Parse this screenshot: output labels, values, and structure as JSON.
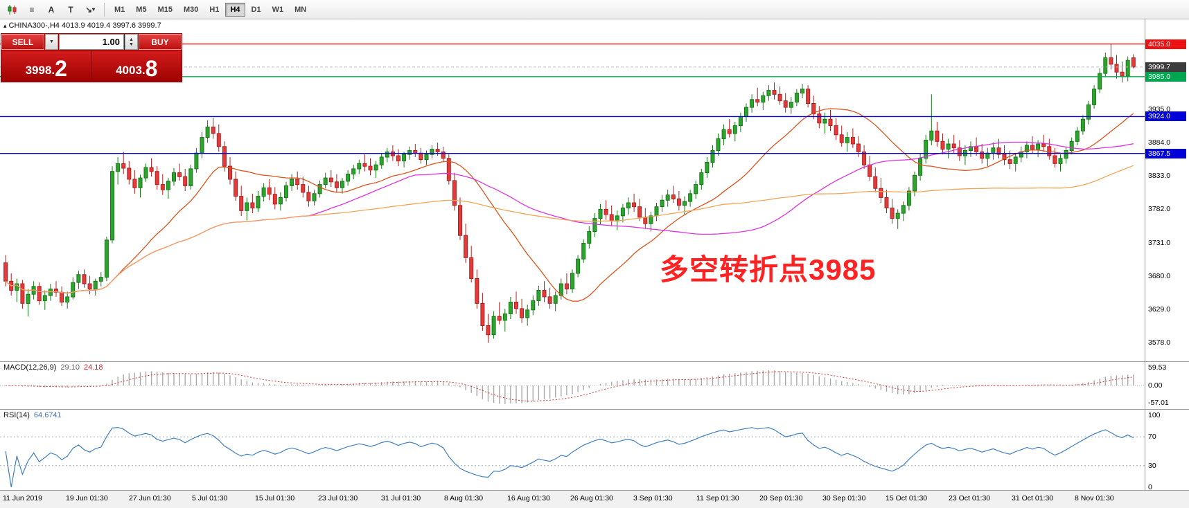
{
  "toolbar": {
    "tools": [
      {
        "name": "chart-type",
        "glyph": "candles"
      },
      {
        "name": "indicators",
        "glyph": "≡"
      },
      {
        "name": "text-tool",
        "glyph": "A"
      },
      {
        "name": "label-tool",
        "glyph": "T"
      },
      {
        "name": "draw-tool",
        "glyph": "↘",
        "caret": true
      }
    ],
    "timeframes": [
      {
        "label": "M1"
      },
      {
        "label": "M5"
      },
      {
        "label": "M15"
      },
      {
        "label": "M30"
      },
      {
        "label": "H1"
      },
      {
        "label": "H4",
        "active": true
      },
      {
        "label": "D1"
      },
      {
        "label": "W1"
      },
      {
        "label": "MN"
      }
    ]
  },
  "header": {
    "text": "CHINA300-,H4  4013.9 4019.4 3997.6 3999.7"
  },
  "trade_panel": {
    "sell_label": "SELL",
    "buy_label": "BUY",
    "volume": "1.00",
    "bid_prefix": "3998.",
    "bid_big": "2",
    "ask_prefix": "4003.",
    "ask_big": "8"
  },
  "annotation": {
    "text": "多空转折点3985",
    "color": "#ff2222"
  },
  "price_axis": {
    "labels": [
      "3935.0",
      "3884.0",
      "3833.0",
      "3782.0",
      "3731.0",
      "3680.0",
      "3629.0",
      "3578.0"
    ],
    "badges": [
      {
        "label": "4035.0",
        "price": 4035.0,
        "color": "#ee1111"
      },
      {
        "label": "3999.7",
        "price": 3999.7,
        "color": "#3c3c3c"
      },
      {
        "label": "3985.0",
        "price": 3985.0,
        "color": "#00a550"
      },
      {
        "label": "3924.0",
        "price": 3924.0,
        "color": "#0000d8"
      },
      {
        "label": "3867.5",
        "price": 3867.5,
        "color": "#0000d8"
      }
    ]
  },
  "levels": [
    {
      "price": 4035.0,
      "color": "#ee1111"
    },
    {
      "price": 3985.0,
      "color": "#00b050"
    },
    {
      "price": 3924.0,
      "color": "#0000d8"
    },
    {
      "price": 3867.5,
      "color": "#0000d8"
    }
  ],
  "current_price": 3999.7,
  "macd": {
    "title": "MACD(12,26,9)",
    "value_main": "29.10",
    "value_signal": "24.18",
    "axis": [
      {
        "label": "59.53",
        "value": 59.53
      },
      {
        "label": "0.00",
        "value": 0
      },
      {
        "label": "-57.01",
        "value": -57.01
      }
    ]
  },
  "rsi": {
    "title": "RSI(14)",
    "value": "64.6741",
    "axis": [
      {
        "label": "100",
        "value": 100
      },
      {
        "label": "70",
        "value": 70
      },
      {
        "label": "30",
        "value": 30
      },
      {
        "label": "0",
        "value": 0
      }
    ],
    "levels": [
      70,
      30
    ]
  },
  "time_axis": [
    "11 Jun 2019",
    "19 Jun 01:30",
    "27 Jun 01:30",
    "5 Jul 01:30",
    "15 Jul 01:30",
    "23 Jul 01:30",
    "31 Jul 01:30",
    "8 Aug 01:30",
    "16 Aug 01:30",
    "26 Aug 01:30",
    "3 Sep 01:30",
    "11 Sep 01:30",
    "20 Sep 01:30",
    "30 Sep 01:30",
    "15 Oct 01:30",
    "23 Oct 01:30",
    "31 Oct 01:30",
    "8 Nov 01:30"
  ],
  "chart_data": {
    "type": "candlestick",
    "symbol": "CHINA300-",
    "timeframe": "H4",
    "current_ohlc": {
      "open": 4013.9,
      "high": 4019.4,
      "low": 3997.6,
      "close": 3999.7
    },
    "price_range": [
      3560,
      4060
    ],
    "up_color": "#2fa32f",
    "up_stroke": "#157a15",
    "down_color": "#e23b3b",
    "down_stroke": "#b02020",
    "overlays": [
      {
        "name": "ma-fast",
        "period": 20,
        "color": "#d9541c"
      },
      {
        "name": "ma-medium",
        "period": 55,
        "color": "#dd33dd"
      },
      {
        "name": "ma-slow",
        "period": 110,
        "color": "#f0a558"
      }
    ],
    "candles": [
      [
        3700,
        3712,
        3664,
        3672
      ],
      [
        3672,
        3684,
        3650,
        3658
      ],
      [
        3658,
        3676,
        3640,
        3668
      ],
      [
        3668,
        3674,
        3630,
        3638
      ],
      [
        3638,
        3660,
        3618,
        3652
      ],
      [
        3652,
        3672,
        3644,
        3664
      ],
      [
        3664,
        3670,
        3636,
        3642
      ],
      [
        3642,
        3658,
        3628,
        3650
      ],
      [
        3650,
        3668,
        3642,
        3660
      ],
      [
        3660,
        3672,
        3648,
        3655
      ],
      [
        3655,
        3664,
        3634,
        3640
      ],
      [
        3640,
        3656,
        3630,
        3648
      ],
      [
        3648,
        3678,
        3644,
        3670
      ],
      [
        3670,
        3688,
        3660,
        3682
      ],
      [
        3682,
        3690,
        3662,
        3668
      ],
      [
        3668,
        3680,
        3652,
        3660
      ],
      [
        3660,
        3676,
        3650,
        3672
      ],
      [
        3672,
        3686,
        3664,
        3678
      ],
      [
        3678,
        3740,
        3672,
        3735
      ],
      [
        3735,
        3848,
        3730,
        3840
      ],
      [
        3840,
        3862,
        3820,
        3852
      ],
      [
        3852,
        3870,
        3836,
        3845
      ],
      [
        3845,
        3856,
        3820,
        3828
      ],
      [
        3828,
        3842,
        3806,
        3815
      ],
      [
        3815,
        3835,
        3800,
        3830
      ],
      [
        3830,
        3852,
        3824,
        3846
      ],
      [
        3846,
        3860,
        3832,
        3840
      ],
      [
        3840,
        3848,
        3812,
        3820
      ],
      [
        3820,
        3836,
        3804,
        3812
      ],
      [
        3812,
        3830,
        3798,
        3825
      ],
      [
        3825,
        3845,
        3818,
        3838
      ],
      [
        3838,
        3852,
        3826,
        3832
      ],
      [
        3832,
        3844,
        3810,
        3818
      ],
      [
        3818,
        3850,
        3812,
        3844
      ],
      [
        3844,
        3876,
        3838,
        3868
      ],
      [
        3868,
        3900,
        3860,
        3892
      ],
      [
        3892,
        3918,
        3884,
        3908
      ],
      [
        3908,
        3922,
        3890,
        3898
      ],
      [
        3898,
        3912,
        3870,
        3878
      ],
      [
        3878,
        3886,
        3840,
        3848
      ],
      [
        3848,
        3862,
        3820,
        3828
      ],
      [
        3828,
        3840,
        3795,
        3802
      ],
      [
        3802,
        3818,
        3772,
        3780
      ],
      [
        3780,
        3800,
        3765,
        3792
      ],
      [
        3792,
        3806,
        3776,
        3784
      ],
      [
        3784,
        3810,
        3778,
        3802
      ],
      [
        3802,
        3822,
        3794,
        3815
      ],
      [
        3815,
        3828,
        3796,
        3805
      ],
      [
        3805,
        3816,
        3782,
        3790
      ],
      [
        3790,
        3808,
        3780,
        3800
      ],
      [
        3800,
        3824,
        3794,
        3818
      ],
      [
        3818,
        3836,
        3810,
        3828
      ],
      [
        3828,
        3840,
        3812,
        3820
      ],
      [
        3820,
        3832,
        3800,
        3808
      ],
      [
        3808,
        3818,
        3786,
        3795
      ],
      [
        3795,
        3812,
        3788,
        3806
      ],
      [
        3806,
        3826,
        3800,
        3820
      ],
      [
        3820,
        3838,
        3814,
        3830
      ],
      [
        3830,
        3842,
        3816,
        3824
      ],
      [
        3824,
        3836,
        3808,
        3815
      ],
      [
        3815,
        3830,
        3806,
        3825
      ],
      [
        3825,
        3842,
        3818,
        3836
      ],
      [
        3836,
        3850,
        3828,
        3844
      ],
      [
        3844,
        3858,
        3836,
        3852
      ],
      [
        3852,
        3866,
        3840,
        3848
      ],
      [
        3848,
        3860,
        3834,
        3842
      ],
      [
        3842,
        3856,
        3830,
        3850
      ],
      [
        3850,
        3868,
        3844,
        3862
      ],
      [
        3862,
        3876,
        3854,
        3870
      ],
      [
        3870,
        3880,
        3856,
        3864
      ],
      [
        3864,
        3874,
        3848,
        3856
      ],
      [
        3856,
        3870,
        3846,
        3866
      ],
      [
        3866,
        3878,
        3858,
        3872
      ],
      [
        3872,
        3882,
        3862,
        3868
      ],
      [
        3868,
        3876,
        3852,
        3858
      ],
      [
        3858,
        3872,
        3850,
        3866
      ],
      [
        3866,
        3880,
        3860,
        3874
      ],
      [
        3874,
        3884,
        3864,
        3870
      ],
      [
        3870,
        3878,
        3854,
        3860
      ],
      [
        3860,
        3866,
        3820,
        3826
      ],
      [
        3826,
        3838,
        3780,
        3788
      ],
      [
        3788,
        3800,
        3735,
        3742
      ],
      [
        3742,
        3760,
        3700,
        3708
      ],
      [
        3708,
        3726,
        3670,
        3676
      ],
      [
        3676,
        3690,
        3630,
        3638
      ],
      [
        3638,
        3654,
        3596,
        3604
      ],
      [
        3604,
        3622,
        3578,
        3590
      ],
      [
        3590,
        3626,
        3584,
        3618
      ],
      [
        3618,
        3640,
        3606,
        3612
      ],
      [
        3612,
        3630,
        3595,
        3622
      ],
      [
        3622,
        3648,
        3614,
        3640
      ],
      [
        3640,
        3656,
        3622,
        3630
      ],
      [
        3630,
        3645,
        3608,
        3616
      ],
      [
        3616,
        3636,
        3604,
        3628
      ],
      [
        3628,
        3650,
        3620,
        3642
      ],
      [
        3642,
        3665,
        3634,
        3658
      ],
      [
        3658,
        3672,
        3640,
        3648
      ],
      [
        3648,
        3662,
        3630,
        3638
      ],
      [
        3638,
        3656,
        3626,
        3650
      ],
      [
        3650,
        3676,
        3644,
        3668
      ],
      [
        3668,
        3684,
        3652,
        3660
      ],
      [
        3660,
        3690,
        3654,
        3684
      ],
      [
        3684,
        3712,
        3678,
        3706
      ],
      [
        3706,
        3736,
        3700,
        3730
      ],
      [
        3730,
        3756,
        3722,
        3748
      ],
      [
        3748,
        3776,
        3740,
        3768
      ],
      [
        3768,
        3790,
        3758,
        3782
      ],
      [
        3782,
        3796,
        3766,
        3774
      ],
      [
        3774,
        3788,
        3756,
        3764
      ],
      [
        3764,
        3780,
        3750,
        3772
      ],
      [
        3772,
        3790,
        3762,
        3784
      ],
      [
        3784,
        3800,
        3774,
        3792
      ],
      [
        3792,
        3806,
        3778,
        3786
      ],
      [
        3786,
        3798,
        3764,
        3770
      ],
      [
        3770,
        3784,
        3752,
        3760
      ],
      [
        3760,
        3778,
        3748,
        3772
      ],
      [
        3772,
        3792,
        3764,
        3786
      ],
      [
        3786,
        3804,
        3778,
        3796
      ],
      [
        3796,
        3812,
        3786,
        3804
      ],
      [
        3804,
        3818,
        3792,
        3798
      ],
      [
        3798,
        3810,
        3780,
        3788
      ],
      [
        3788,
        3802,
        3774,
        3794
      ],
      [
        3794,
        3812,
        3786,
        3806
      ],
      [
        3806,
        3826,
        3798,
        3820
      ],
      [
        3820,
        3844,
        3812,
        3838
      ],
      [
        3838,
        3862,
        3830,
        3854
      ],
      [
        3854,
        3880,
        3846,
        3872
      ],
      [
        3872,
        3898,
        3864,
        3890
      ],
      [
        3890,
        3912,
        3880,
        3904
      ],
      [
        3904,
        3920,
        3892,
        3898
      ],
      [
        3898,
        3916,
        3886,
        3910
      ],
      [
        3910,
        3930,
        3900,
        3924
      ],
      [
        3924,
        3944,
        3916,
        3938
      ],
      [
        3938,
        3958,
        3930,
        3950
      ],
      [
        3950,
        3968,
        3940,
        3946
      ],
      [
        3946,
        3962,
        3934,
        3956
      ],
      [
        3956,
        3972,
        3948,
        3964
      ],
      [
        3964,
        3976,
        3950,
        3958
      ],
      [
        3958,
        3970,
        3942,
        3948
      ],
      [
        3948,
        3960,
        3930,
        3938
      ],
      [
        3938,
        3954,
        3928,
        3946
      ],
      [
        3946,
        3966,
        3940,
        3960
      ],
      [
        3960,
        3974,
        3952,
        3966
      ],
      [
        3966,
        3972,
        3938,
        3944
      ],
      [
        3944,
        3956,
        3920,
        3928
      ],
      [
        3928,
        3940,
        3906,
        3914
      ],
      [
        3914,
        3930,
        3898,
        3920
      ],
      [
        3920,
        3934,
        3902,
        3910
      ],
      [
        3910,
        3922,
        3888,
        3896
      ],
      [
        3896,
        3910,
        3878,
        3884
      ],
      [
        3884,
        3900,
        3870,
        3892
      ],
      [
        3892,
        3906,
        3876,
        3882
      ],
      [
        3882,
        3894,
        3862,
        3870
      ],
      [
        3870,
        3880,
        3844,
        3850
      ],
      [
        3850,
        3864,
        3826,
        3832
      ],
      [
        3832,
        3846,
        3808,
        3814
      ],
      [
        3814,
        3830,
        3792,
        3800
      ],
      [
        3800,
        3812,
        3776,
        3784
      ],
      [
        3784,
        3798,
        3760,
        3768
      ],
      [
        3768,
        3782,
        3752,
        3776
      ],
      [
        3776,
        3794,
        3764,
        3788
      ],
      [
        3788,
        3816,
        3780,
        3810
      ],
      [
        3810,
        3840,
        3802,
        3834
      ],
      [
        3834,
        3868,
        3826,
        3860
      ],
      [
        3860,
        3896,
        3852,
        3888
      ],
      [
        3888,
        3958,
        3880,
        3902
      ],
      [
        3902,
        3916,
        3878,
        3886
      ],
      [
        3886,
        3898,
        3866,
        3874
      ],
      [
        3874,
        3890,
        3860,
        3882
      ],
      [
        3882,
        3896,
        3868,
        3876
      ],
      [
        3876,
        3888,
        3856,
        3864
      ],
      [
        3864,
        3880,
        3850,
        3872
      ],
      [
        3872,
        3886,
        3862,
        3878
      ],
      [
        3878,
        3892,
        3864,
        3870
      ],
      [
        3870,
        3882,
        3852,
        3860
      ],
      [
        3860,
        3876,
        3848,
        3868
      ],
      [
        3868,
        3884,
        3858,
        3876
      ],
      [
        3876,
        3890,
        3860,
        3866
      ],
      [
        3866,
        3880,
        3850,
        3858
      ],
      [
        3858,
        3872,
        3844,
        3852
      ],
      [
        3852,
        3868,
        3840,
        3862
      ],
      [
        3862,
        3878,
        3854,
        3870
      ],
      [
        3870,
        3886,
        3860,
        3880
      ],
      [
        3880,
        3894,
        3868,
        3874
      ],
      [
        3874,
        3888,
        3862,
        3882
      ],
      [
        3882,
        3896,
        3870,
        3878
      ],
      [
        3878,
        3890,
        3858,
        3864
      ],
      [
        3864,
        3876,
        3846,
        3852
      ],
      [
        3852,
        3866,
        3840,
        3860
      ],
      [
        3860,
        3878,
        3852,
        3872
      ],
      [
        3872,
        3892,
        3866,
        3886
      ],
      [
        3886,
        3908,
        3880,
        3902
      ],
      [
        3902,
        3926,
        3896,
        3920
      ],
      [
        3920,
        3948,
        3912,
        3942
      ],
      [
        3942,
        3972,
        3936,
        3966
      ],
      [
        3966,
        3998,
        3960,
        3990
      ],
      [
        3990,
        4022,
        3984,
        4014
      ],
      [
        4014,
        4035,
        3996,
        4004
      ],
      [
        4004,
        4018,
        3982,
        3992
      ],
      [
        3992,
        4008,
        3976,
        3986
      ],
      [
        3986,
        4016,
        3978,
        4010
      ],
      [
        4013.9,
        4019.4,
        3997.6,
        3999.7
      ]
    ]
  }
}
